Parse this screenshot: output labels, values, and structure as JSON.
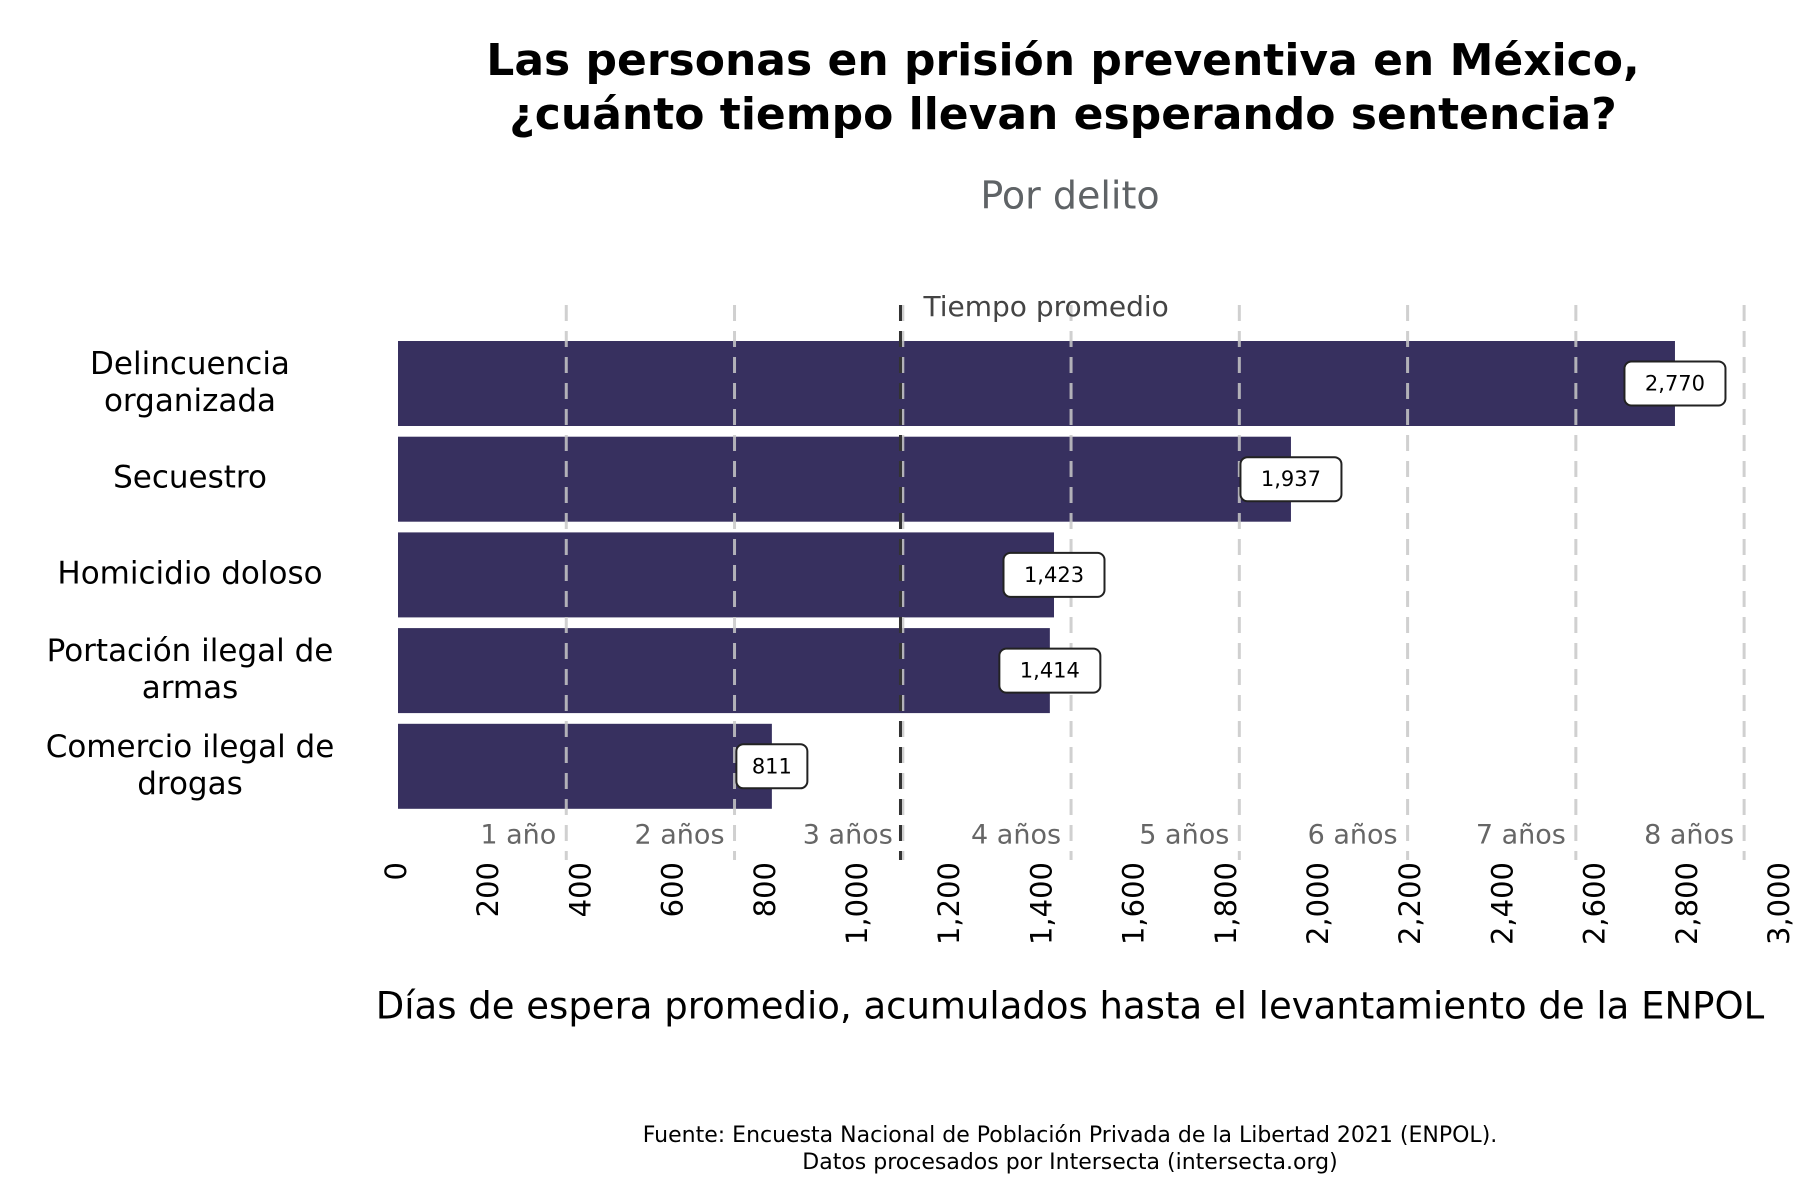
{
  "chart_data": {
    "type": "barh",
    "title": [
      "Las personas en prisión preventiva en México,",
      "¿cuánto tiempo llevan esperando sentencia?"
    ],
    "subtitle": "Por delito",
    "categories": [
      "Delincuencia organizada",
      "Secuestro",
      "Homicidio doloso",
      "Portación ilegal de armas",
      "Comercio ilegal de drogas"
    ],
    "values": [
      2770,
      1937,
      1423,
      1414,
      811
    ],
    "value_labels": [
      "2,770",
      "1,937",
      "1,423",
      "1,414",
      "811"
    ],
    "color": "#37305f",
    "xlim": [
      0,
      3000
    ],
    "xticks": [
      0,
      200,
      400,
      600,
      800,
      {
        "value": 1000,
        "label": "1,000"
      },
      {
        "value": 1200,
        "label": "1,200"
      },
      {
        "value": 1400,
        "label": "1,400"
      },
      {
        "value": 1600,
        "label": "1,600"
      },
      {
        "value": 1800,
        "label": "1,800"
      },
      {
        "value": 2000,
        "label": "2,000"
      },
      {
        "value": 2200,
        "label": "2,200"
      },
      {
        "value": 2400,
        "label": "2,400"
      },
      {
        "value": 2600,
        "label": "2,600"
      },
      {
        "value": 2800,
        "label": "2,800"
      },
      {
        "value": 3000,
        "label": "3,000"
      }
    ],
    "year_lines": [
      {
        "value": 365,
        "label": "1 año"
      },
      {
        "value": 730,
        "label": "2 años"
      },
      {
        "value": 1095,
        "label": "3 años"
      },
      {
        "value": 1460,
        "label": "4 años"
      },
      {
        "value": 1825,
        "label": "5 años"
      },
      {
        "value": 2190,
        "label": "6 años"
      },
      {
        "value": 2555,
        "label": "7 años"
      },
      {
        "value": 2920,
        "label": "8 años"
      }
    ],
    "mean_line": {
      "value": 1090,
      "label": "Tiempo promedio"
    },
    "xlabel": "Días de espera promedio, acumulados hasta el levantamiento de la ENPOL",
    "caption": [
      "Fuente: Encuesta Nacional de Población Privada de la Libertad 2021 (ENPOL).",
      "Datos procesados por Intersecta (intersecta.org)"
    ]
  }
}
